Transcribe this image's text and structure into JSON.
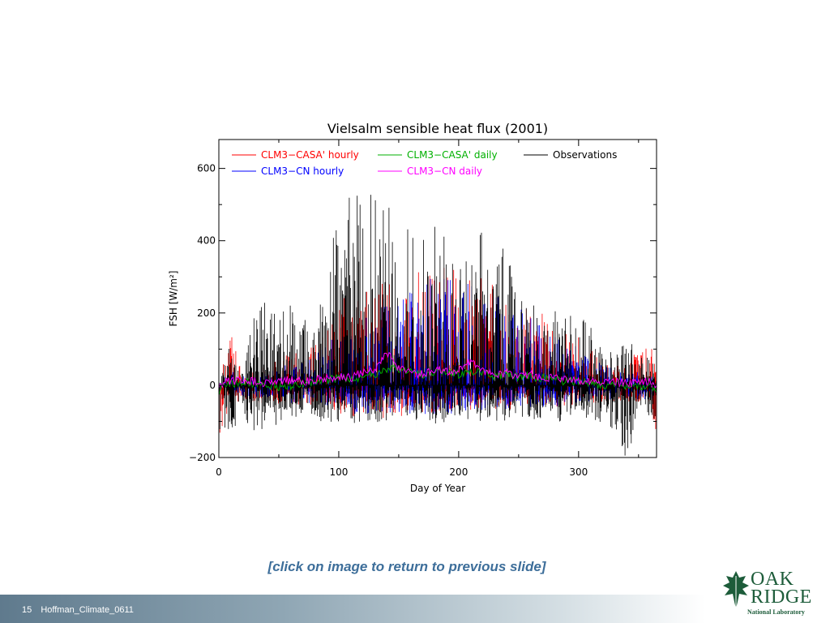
{
  "slide": {
    "caption": "[click on image to return to previous slide]",
    "page_number": "15",
    "footer_label": "Hoffman_Climate_0611"
  },
  "logo": {
    "line1": "OAK",
    "line2": "RIDGE",
    "line3": "National Laboratory",
    "icon": "oak-leaf-icon",
    "color": "#1d5c3a"
  },
  "chart_data": {
    "type": "line",
    "title": "Vielsalm sensible heat flux (2001)",
    "xlabel": "Day of Year",
    "ylabel": "FSH [W/m²]",
    "xlim": [
      0,
      365
    ],
    "ylim": [
      -200,
      680
    ],
    "xticks": [
      0,
      100,
      200,
      300
    ],
    "yticks": [
      -200,
      0,
      200,
      400,
      600
    ],
    "grid": false,
    "legend_placement": "top",
    "series": [
      {
        "name": "CLM3−CASA' hourly",
        "color": "#ff0000",
        "style": "hourly",
        "x": [
          0,
          10,
          20,
          30,
          40,
          50,
          60,
          70,
          80,
          90,
          100,
          110,
          120,
          130,
          140,
          150,
          160,
          170,
          180,
          190,
          200,
          210,
          220,
          230,
          240,
          250,
          260,
          270,
          280,
          290,
          300,
          310,
          320,
          330,
          340,
          350,
          360,
          365
        ],
        "max": [
          10,
          150,
          35,
          40,
          60,
          70,
          100,
          90,
          110,
          180,
          220,
          270,
          260,
          300,
          310,
          320,
          330,
          320,
          340,
          330,
          320,
          310,
          300,
          280,
          260,
          240,
          220,
          200,
          180,
          160,
          150,
          100,
          80,
          60,
          60,
          100,
          110,
          60
        ],
        "min": [
          -145,
          -60,
          -40,
          -50,
          -50,
          -60,
          -60,
          -55,
          -60,
          -70,
          -80,
          -90,
          -90,
          -100,
          -90,
          -90,
          -80,
          -80,
          -80,
          -80,
          -80,
          -70,
          -70,
          -70,
          -70,
          -60,
          -60,
          -60,
          -60,
          -60,
          -60,
          -50,
          -50,
          -50,
          -50,
          -50,
          -60,
          -150
        ]
      },
      {
        "name": "CLM3−CN hourly",
        "color": "#0000ff",
        "style": "hourly",
        "x": [
          0,
          10,
          20,
          30,
          40,
          50,
          60,
          70,
          80,
          90,
          100,
          110,
          120,
          130,
          140,
          150,
          160,
          170,
          180,
          190,
          200,
          210,
          220,
          230,
          240,
          250,
          260,
          270,
          280,
          290,
          300,
          310,
          320,
          330,
          340,
          350,
          360,
          365
        ],
        "max": [
          10,
          40,
          30,
          35,
          45,
          50,
          60,
          70,
          80,
          120,
          150,
          180,
          200,
          230,
          260,
          280,
          300,
          290,
          310,
          300,
          290,
          280,
          270,
          260,
          240,
          220,
          200,
          170,
          150,
          130,
          110,
          80,
          60,
          45,
          40,
          40,
          35,
          20
        ],
        "min": [
          -30,
          -30,
          -35,
          -40,
          -40,
          -45,
          -50,
          -50,
          -55,
          -60,
          -70,
          -80,
          -80,
          -80,
          -80,
          -80,
          -80,
          -80,
          -80,
          -80,
          -80,
          -70,
          -70,
          -70,
          -70,
          -60,
          -60,
          -60,
          -60,
          -55,
          -50,
          -45,
          -40,
          -40,
          -40,
          -40,
          -40,
          -30
        ]
      },
      {
        "name": "CLM3−CASA' daily",
        "color": "#00b000",
        "style": "daily",
        "x": [
          0,
          10,
          20,
          30,
          40,
          50,
          60,
          70,
          80,
          90,
          100,
          110,
          120,
          130,
          140,
          150,
          160,
          170,
          180,
          190,
          200,
          210,
          220,
          230,
          240,
          250,
          260,
          270,
          280,
          290,
          300,
          310,
          320,
          330,
          340,
          350,
          360,
          365
        ],
        "y": [
          -15,
          5,
          10,
          5,
          0,
          -5,
          0,
          5,
          10,
          15,
          20,
          15,
          25,
          30,
          45,
          40,
          35,
          30,
          40,
          35,
          30,
          35,
          40,
          25,
          30,
          20,
          25,
          20,
          15,
          10,
          10,
          5,
          0,
          5,
          0,
          -5,
          0,
          -10
        ]
      },
      {
        "name": "CLM3−CN daily",
        "color": "#ff00ff",
        "style": "daily",
        "x": [
          0,
          10,
          20,
          30,
          40,
          50,
          60,
          70,
          80,
          90,
          100,
          110,
          120,
          130,
          140,
          150,
          160,
          170,
          180,
          190,
          200,
          210,
          220,
          230,
          240,
          250,
          260,
          270,
          280,
          290,
          300,
          310,
          320,
          330,
          340,
          350,
          360,
          365
        ],
        "y": [
          5,
          10,
          15,
          10,
          5,
          10,
          15,
          10,
          15,
          20,
          25,
          20,
          35,
          40,
          90,
          50,
          35,
          30,
          45,
          35,
          40,
          65,
          40,
          30,
          35,
          25,
          30,
          20,
          20,
          15,
          15,
          10,
          5,
          10,
          5,
          5,
          10,
          0
        ]
      },
      {
        "name": "Observations",
        "color": "#000000",
        "style": "hourly",
        "x": [
          0,
          10,
          20,
          30,
          40,
          50,
          60,
          70,
          80,
          90,
          100,
          110,
          120,
          130,
          140,
          150,
          160,
          170,
          180,
          190,
          200,
          210,
          220,
          230,
          240,
          250,
          260,
          270,
          280,
          290,
          300,
          310,
          320,
          330,
          340,
          350,
          360,
          365
        ],
        "max": [
          10,
          140,
          60,
          270,
          220,
          200,
          240,
          200,
          180,
          400,
          440,
          560,
          500,
          560,
          520,
          480,
          440,
          420,
          450,
          420,
          400,
          460,
          420,
          380,
          380,
          300,
          250,
          240,
          220,
          200,
          200,
          160,
          120,
          90,
          130,
          100,
          80,
          50
        ],
        "min": [
          -140,
          -120,
          -100,
          -130,
          -160,
          -100,
          -110,
          -90,
          -90,
          -110,
          -100,
          -110,
          -100,
          -100,
          -110,
          -100,
          -100,
          -100,
          -110,
          -100,
          -100,
          -100,
          -110,
          -100,
          -100,
          -90,
          -100,
          -90,
          -110,
          -90,
          -80,
          -120,
          -110,
          -130,
          -210,
          -90,
          -100,
          -120
        ]
      }
    ],
    "legend": [
      {
        "label": "CLM3−CASA' hourly",
        "color": "#ff0000"
      },
      {
        "label": "CLM3−CASA' daily",
        "color": "#00b000"
      },
      {
        "label": "Observations",
        "color": "#000000"
      },
      {
        "label": "CLM3−CN hourly",
        "color": "#0000ff"
      },
      {
        "label": "CLM3−CN daily",
        "color": "#ff00ff"
      }
    ]
  }
}
